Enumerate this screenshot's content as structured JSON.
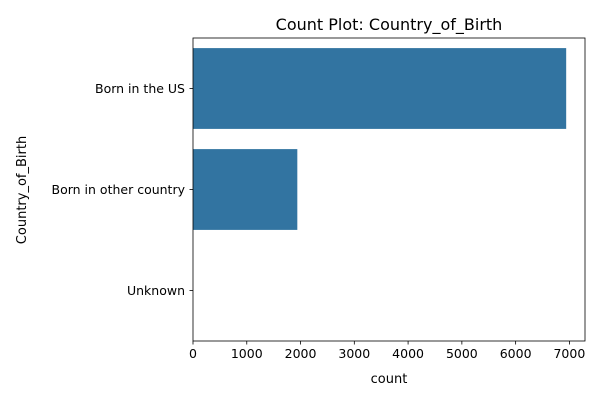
{
  "chart_data": {
    "type": "bar",
    "orientation": "horizontal",
    "title": "Count Plot: Country_of_Birth",
    "xlabel": "count",
    "ylabel": "Country_of_Birth",
    "categories": [
      "Born in the US",
      "Born in other country",
      "Unknown"
    ],
    "values": [
      6940,
      1940,
      0
    ],
    "xlim": [
      0,
      7290
    ],
    "xticks": [
      0,
      1000,
      2000,
      3000,
      4000,
      5000,
      6000,
      7000
    ],
    "grid": false,
    "legend": "none",
    "bar_color": "#3274a1"
  }
}
